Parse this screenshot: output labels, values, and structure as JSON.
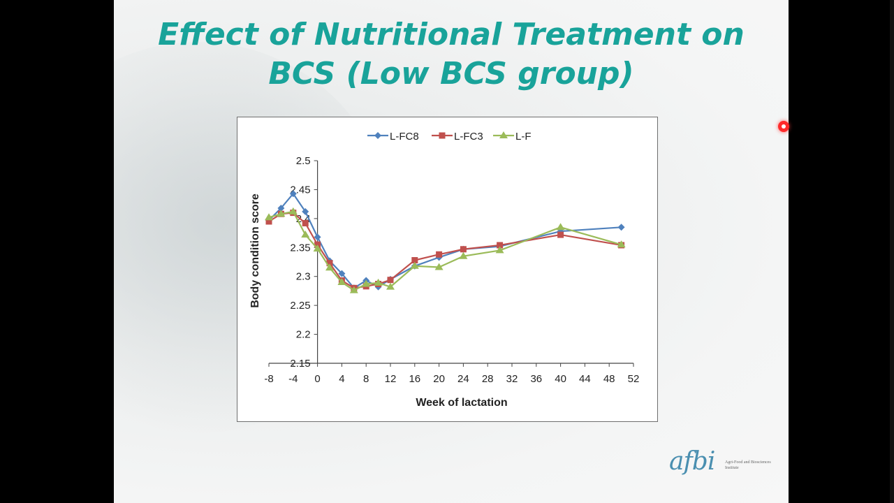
{
  "slide": {
    "title_line1": "Effect of Nutritional Treatment on",
    "title_line2": "BCS  (Low BCS group)"
  },
  "logo": {
    "text": "afbi",
    "subtitle": "Agri-Food and Biosciences Institute"
  },
  "colors": {
    "title": "#19a39a",
    "L-FC8": "#4f81bd",
    "L-FC3": "#c0504d",
    "L-F": "#9bbb59",
    "record_dot": "#ff2a2a"
  },
  "chart_data": {
    "type": "line",
    "title": "",
    "xlabel": "Week of lactation",
    "ylabel": "Body condition score",
    "xlim": [
      -8,
      52
    ],
    "ylim": [
      2.15,
      2.5
    ],
    "xticks": [
      -8,
      -4,
      0,
      4,
      8,
      12,
      16,
      20,
      24,
      28,
      32,
      36,
      40,
      44,
      48,
      52
    ],
    "yticks": [
      2.15,
      2.2,
      2.25,
      2.3,
      2.35,
      2.4,
      2.45,
      2.5
    ],
    "ytick_labels": [
      "2.15",
      "2.2",
      "2.25",
      "2.3",
      "2.35",
      "2.4",
      "2.45",
      "2.5"
    ],
    "grid": false,
    "legend": "top",
    "series": [
      {
        "name": "L-FC8",
        "marker": "diamond",
        "color": "#4f81bd",
        "x": [
          -8,
          -6,
          -4,
          -2,
          0,
          2,
          4,
          6,
          8,
          10,
          12,
          16,
          20,
          24,
          30,
          40,
          50
        ],
        "y": [
          2.397,
          2.418,
          2.443,
          2.412,
          2.368,
          2.327,
          2.305,
          2.28,
          2.293,
          2.282,
          2.295,
          2.318,
          2.333,
          2.347,
          2.352,
          2.378,
          2.385
        ]
      },
      {
        "name": "L-FC3",
        "marker": "square",
        "color": "#c0504d",
        "x": [
          -8,
          -6,
          -4,
          -2,
          0,
          2,
          4,
          6,
          8,
          10,
          12,
          16,
          20,
          24,
          30,
          40,
          50
        ],
        "y": [
          2.395,
          2.408,
          2.41,
          2.392,
          2.355,
          2.323,
          2.293,
          2.28,
          2.283,
          2.287,
          2.294,
          2.328,
          2.338,
          2.347,
          2.354,
          2.372,
          2.354
        ]
      },
      {
        "name": "L-F",
        "marker": "triangle",
        "color": "#9bbb59",
        "x": [
          -8,
          -6,
          -4,
          -2,
          0,
          2,
          4,
          6,
          8,
          10,
          12,
          16,
          20,
          24,
          30,
          40,
          50
        ],
        "y": [
          2.402,
          2.408,
          2.412,
          2.372,
          2.348,
          2.315,
          2.29,
          2.276,
          2.287,
          2.289,
          2.282,
          2.318,
          2.316,
          2.335,
          2.345,
          2.385,
          2.355
        ]
      }
    ]
  }
}
